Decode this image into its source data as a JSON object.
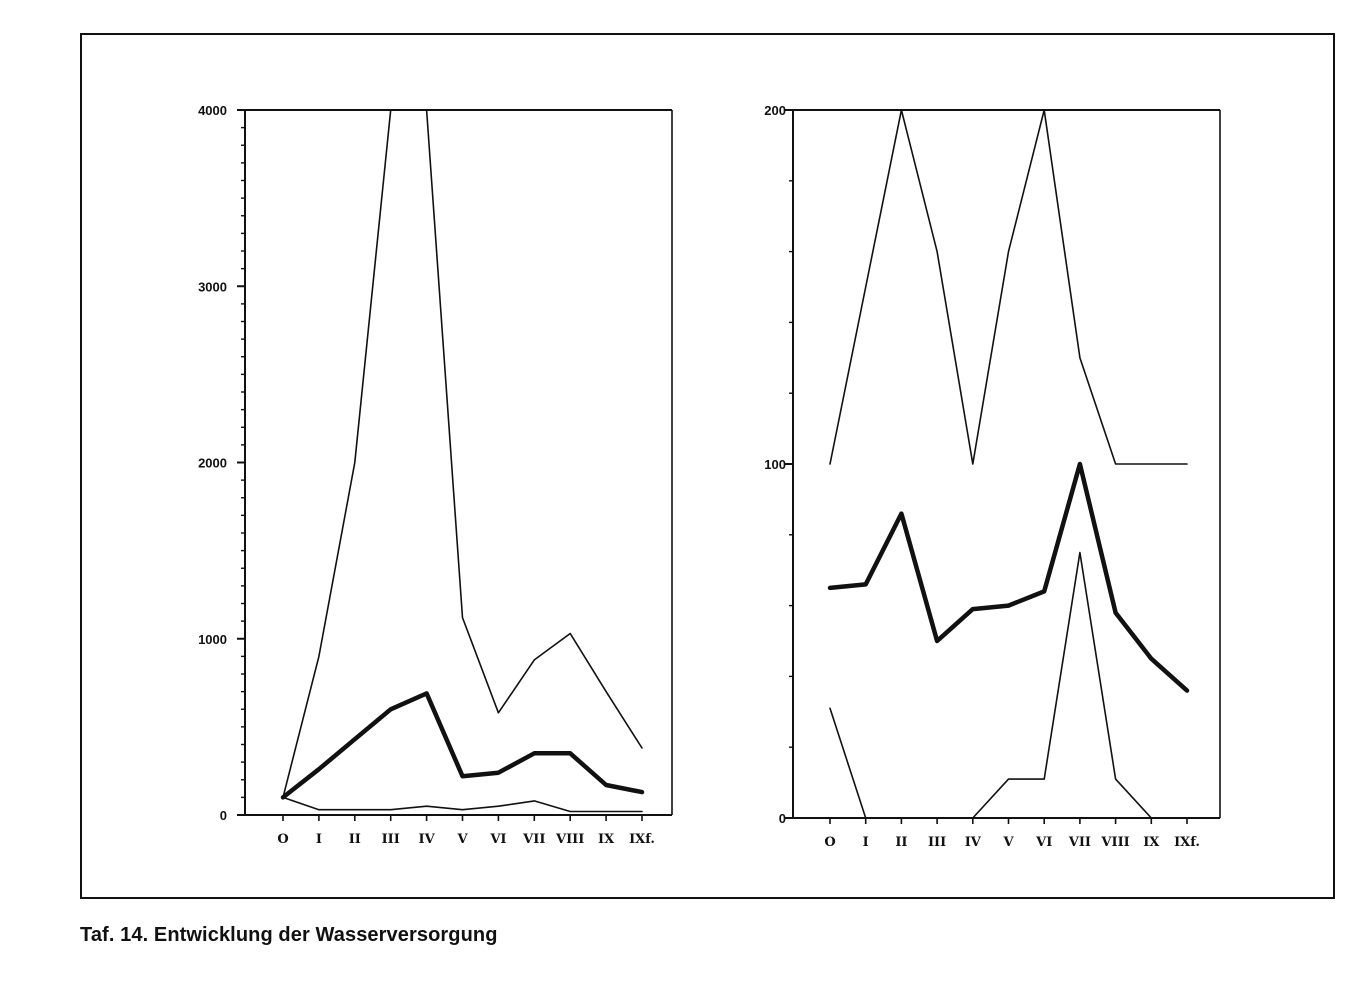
{
  "caption": "Taf. 14. Entwicklung der Wasserversorgung",
  "chart_data": [
    {
      "type": "line",
      "categories": [
        "O",
        "I",
        "II",
        "III",
        "IV",
        "V",
        "VI",
        "VII",
        "VIII",
        "IX",
        "IXf."
      ],
      "ylim": [
        0,
        4000
      ],
      "yticks": [
        0,
        1000,
        2000,
        3000,
        4000
      ],
      "ytick_labels": [
        "0",
        "1000",
        "2000",
        "3000",
        "4000"
      ],
      "grid": false,
      "series": [
        {
          "style": "thin",
          "values": [
            100,
            900,
            2000,
            4000,
            4000,
            1120,
            580,
            880,
            1030,
            700,
            380
          ]
        },
        {
          "style": "bold",
          "values": [
            100,
            260,
            430,
            600,
            690,
            220,
            240,
            350,
            350,
            170,
            130
          ]
        },
        {
          "style": "thin",
          "values": [
            100,
            30,
            30,
            30,
            50,
            30,
            50,
            80,
            20,
            20,
            20
          ]
        }
      ]
    },
    {
      "type": "line",
      "categories": [
        "O",
        "I",
        "II",
        "III",
        "IV",
        "V",
        "VI",
        "VII",
        "VIII",
        "IX",
        "IXf."
      ],
      "ylim": [
        0,
        200
      ],
      "yticks": [
        0,
        100,
        200
      ],
      "ytick_labels": [
        "0",
        "100",
        "200"
      ],
      "grid": false,
      "series": [
        {
          "style": "thin",
          "values": [
            100,
            150,
            200,
            160,
            100,
            160,
            200,
            130,
            100,
            100,
            100
          ]
        },
        {
          "style": "bold",
          "values": [
            65,
            66,
            86,
            50,
            59,
            60,
            64,
            100,
            58,
            45,
            36
          ]
        },
        {
          "style": "thin",
          "values": [
            31,
            0,
            null,
            null,
            0,
            11,
            11,
            75,
            11,
            0,
            null
          ]
        }
      ]
    }
  ]
}
